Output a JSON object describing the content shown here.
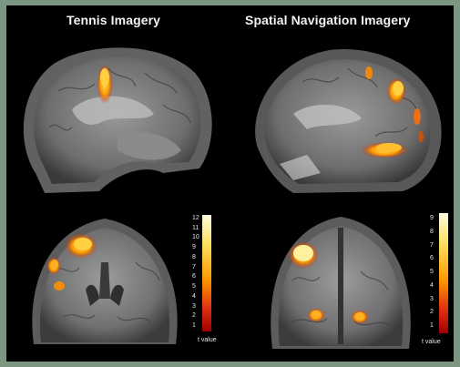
{
  "titles": {
    "left": "Tennis Imagery",
    "right": "Spatial Navigation  Imagery"
  },
  "colorbars": {
    "left": {
      "ticks": [
        "12",
        "11",
        "10",
        "9",
        "8",
        "7",
        "6",
        "5",
        "4",
        "3",
        "2",
        "1"
      ],
      "label": "t value"
    },
    "right": {
      "ticks": [
        "9",
        "8",
        "7",
        "6",
        "5",
        "4",
        "3",
        "2",
        "1"
      ],
      "label": "t value"
    }
  },
  "colors": {
    "background": "#7d9682",
    "activation_hot": "#ffe060",
    "activation_mid": "#ff9a00",
    "activation_low": "#d02000"
  }
}
